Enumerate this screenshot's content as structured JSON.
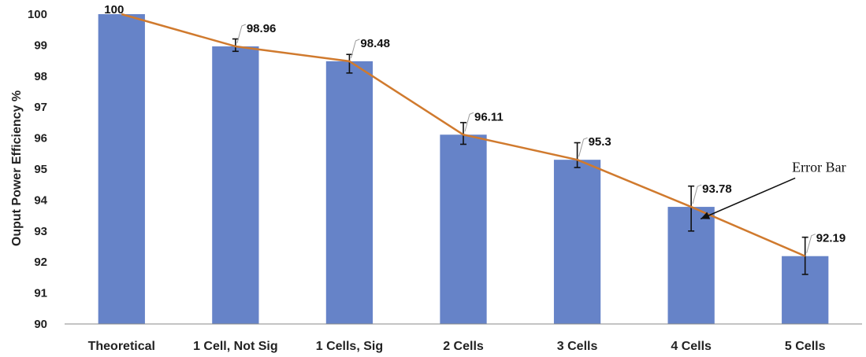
{
  "chart_data": {
    "type": "bar",
    "title": "",
    "xlabel": "",
    "ylabel": "Ouput Power Efficiency %",
    "ylim": [
      90,
      100
    ],
    "yticks": [
      90,
      91,
      92,
      93,
      94,
      95,
      96,
      97,
      98,
      99,
      100
    ],
    "grid": false,
    "categories": [
      "Theoretical",
      "1 Cell, Not Sig",
      "1 Cells, Sig",
      "2 Cells",
      "3 Cells",
      "4 Cells",
      "5 Cells"
    ],
    "values": [
      100,
      98.96,
      98.48,
      96.11,
      95.3,
      93.78,
      92.19
    ],
    "data_labels": [
      "100",
      "98.96",
      "98.48",
      "96.11",
      "95.3",
      "93.78",
      "92.19"
    ],
    "error_low": [
      100,
      98.8,
      98.1,
      95.8,
      95.05,
      93.0,
      91.6
    ],
    "error_high": [
      100,
      99.2,
      98.7,
      96.5,
      95.85,
      94.45,
      92.8
    ],
    "overlay_line": true,
    "colors": {
      "bar": "#6683c8",
      "line": "#d07a2e",
      "error": "#111111",
      "axis": "#888888",
      "text": "#222222"
    },
    "annotations": [
      {
        "text": "Error Bar",
        "target_index": 5
      }
    ]
  }
}
